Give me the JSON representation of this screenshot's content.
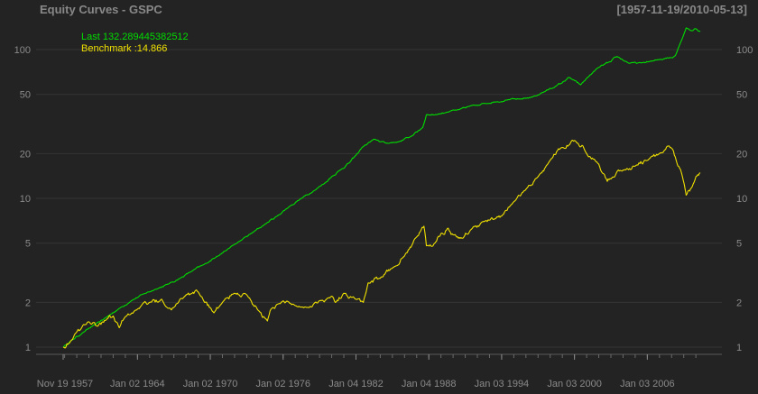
{
  "header": {
    "title": "Equity Curves - GSPC",
    "date_range": "[1957-11-19/2010-05-13]"
  },
  "chart_data": {
    "type": "line",
    "title": "Equity Curves - GSPC",
    "subtitle": "[1957-11-19/2010-05-13]",
    "y_scale": "log",
    "ylim": [
      0.92,
      150
    ],
    "xlim": [
      1957.88,
      2010.36
    ],
    "y_ticks": [
      1,
      2,
      5,
      10,
      20,
      50,
      100
    ],
    "y_tick_labels": [
      "1",
      "2",
      "5",
      "10",
      "20",
      "50",
      "100"
    ],
    "x_ticks": [
      1957.88,
      1964.0,
      1970.0,
      1976.0,
      1982.0,
      1988.0,
      1994.0,
      2000.0,
      2006.0
    ],
    "x_tick_labels": [
      "Nov 19 1957",
      "Jan 02 1964",
      "Jan 02 1970",
      "Jan 02 1976",
      "Jan 04 1982",
      "Jan 04 1988",
      "Jan 03 1994",
      "Jan 03 2000",
      "Jan 03 2006"
    ],
    "grid": true,
    "legend_position": "top-left",
    "legend": [
      {
        "text": "Last 132.289445382512",
        "color": "#00dd00"
      },
      {
        "text": "Benchmark :14.866",
        "color": "#f0e000"
      }
    ],
    "series": [
      {
        "color": "#00dd00",
        "x": [
          1957.88,
          1958.5,
          1959.5,
          1960.5,
          1961.5,
          1962.5,
          1963.5,
          1964.5,
          1965.5,
          1966.5,
          1967.5,
          1968.5,
          1969.5,
          1970.5,
          1971.5,
          1972.5,
          1973.5,
          1974.5,
          1975.5,
          1976.5,
          1977.5,
          1978.5,
          1979.5,
          1980.0,
          1980.7,
          1981.5,
          1982.0,
          1982.5,
          1983.5,
          1984.5,
          1985.5,
          1986.5,
          1987.5,
          1987.8,
          1988.5,
          1989.5,
          1990.5,
          1991.5,
          1992.5,
          1993.5,
          1994.5,
          1995.5,
          1996.5,
          1997.5,
          1998.5,
          1999.0,
          1999.5,
          2000.0,
          2000.5,
          2001.0,
          2001.5,
          2002.0,
          2002.5,
          2003.0,
          2003.5,
          2004.5,
          2005.5,
          2006.5,
          2007.0,
          2007.5,
          2007.8,
          2008.3,
          2008.7,
          2009.2,
          2009.7,
          2010.0,
          2010.36
        ],
        "values": [
          1.0,
          1.1,
          1.25,
          1.42,
          1.6,
          1.82,
          2.05,
          2.28,
          2.45,
          2.65,
          2.9,
          3.25,
          3.6,
          4.05,
          4.6,
          5.2,
          5.9,
          6.7,
          7.6,
          8.8,
          10.0,
          11.2,
          12.8,
          14.0,
          15.5,
          17.5,
          19.5,
          22.0,
          25.0,
          23.5,
          24.0,
          26.0,
          30.0,
          36.5,
          36.5,
          38.0,
          39.5,
          42.0,
          43.5,
          44.5,
          46.0,
          46.5,
          48.0,
          52.0,
          57.0,
          60.0,
          65.0,
          62.0,
          58.0,
          64.0,
          70.0,
          76.0,
          80.0,
          83.0,
          90.0,
          81.0,
          81.5,
          84.0,
          86.0,
          87.5,
          88.0,
          91.0,
          110.0,
          140.0,
          134.0,
          138.0,
          132.29
        ]
      },
      {
        "color": "#f0e000",
        "x": [
          1957.88,
          1958.5,
          1959.5,
          1960.0,
          1960.7,
          1961.5,
          1962.0,
          1962.5,
          1963.0,
          1964.0,
          1965.0,
          1966.0,
          1966.8,
          1967.5,
          1968.5,
          1969.0,
          1970.3,
          1971.0,
          1972.0,
          1973.0,
          1974.0,
          1974.7,
          1975.0,
          1976.0,
          1977.0,
          1978.0,
          1979.0,
          1980.0,
          1980.3,
          1981.0,
          1982.0,
          1982.6,
          1983.0,
          1984.0,
          1985.0,
          1986.0,
          1987.0,
          1987.6,
          1987.8,
          1988.5,
          1989.0,
          1989.6,
          1990.0,
          1990.8,
          1991.5,
          1992.5,
          1993.5,
          1994.0,
          1995.0,
          1996.0,
          1997.0,
          1998.0,
          1998.6,
          1999.0,
          1999.6,
          2000.0,
          2000.7,
          2001.0,
          2001.7,
          2002.0,
          2002.7,
          2003.0,
          2004.0,
          2005.0,
          2006.0,
          2007.0,
          2007.8,
          2008.3,
          2008.8,
          2009.2,
          2009.7,
          2010.0,
          2010.36
        ],
        "values": [
          1.0,
          1.1,
          1.4,
          1.48,
          1.38,
          1.55,
          1.62,
          1.35,
          1.6,
          1.8,
          2.0,
          2.1,
          1.78,
          2.1,
          2.3,
          2.35,
          1.7,
          2.0,
          2.3,
          2.25,
          1.75,
          1.5,
          1.8,
          2.05,
          1.9,
          1.85,
          2.05,
          2.2,
          2.0,
          2.3,
          2.1,
          2.0,
          2.7,
          2.9,
          3.4,
          4.1,
          5.5,
          6.5,
          4.8,
          5.0,
          5.8,
          6.3,
          5.7,
          5.4,
          6.2,
          7.0,
          7.3,
          7.6,
          9.5,
          11.5,
          14.0,
          18.0,
          21.0,
          22.0,
          23.0,
          24.5,
          22.5,
          20.0,
          18.0,
          17.0,
          13.0,
          13.5,
          15.5,
          16.5,
          18.0,
          20.0,
          22.5,
          19.0,
          15.0,
          10.5,
          12.0,
          14.0,
          14.866
        ]
      }
    ]
  }
}
